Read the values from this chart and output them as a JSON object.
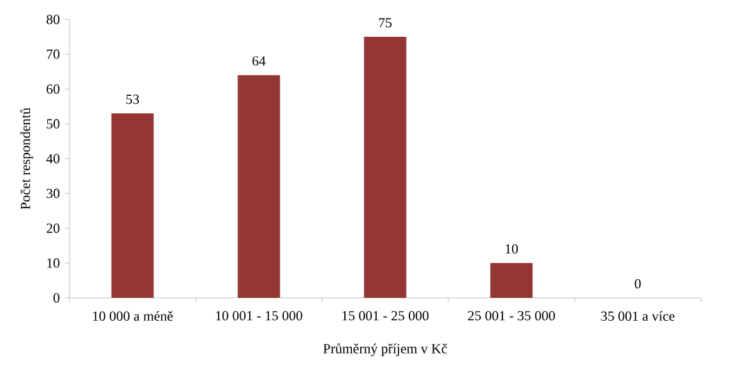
{
  "chart_data": {
    "type": "bar",
    "xlabel": "Průměrný příjem v Kč",
    "ylabel": "Počet respondentů",
    "categories": [
      "10 000 a méně",
      "10 001 - 15 000",
      "15 001 - 25 000",
      "25 001 - 35 000",
      "35 001 a více"
    ],
    "values": [
      53,
      64,
      75,
      10,
      0
    ],
    "color": "#943634",
    "ylim": [
      0,
      80
    ],
    "yticks": [
      0,
      10,
      20,
      30,
      40,
      50,
      60,
      70,
      80
    ],
    "data_labels": true
  }
}
